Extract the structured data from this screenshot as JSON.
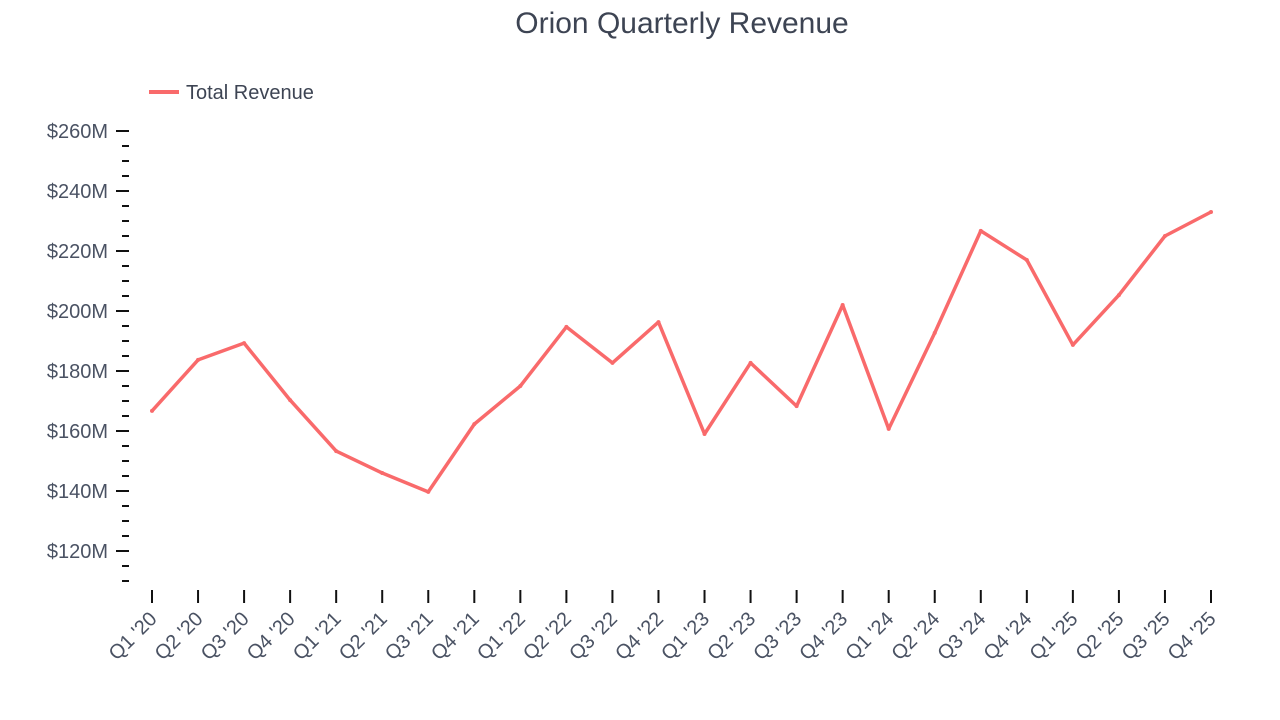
{
  "chart_data": {
    "type": "line",
    "title": "Orion Quarterly Revenue",
    "xlabel": "",
    "ylabel": "",
    "categories": [
      "Q1 '20",
      "Q2 '20",
      "Q3 '20",
      "Q4 '20",
      "Q1 '21",
      "Q2 '21",
      "Q3 '21",
      "Q4 '21",
      "Q1 '22",
      "Q2 '22",
      "Q3 '22",
      "Q4 '22",
      "Q1 '23",
      "Q2 '23",
      "Q3 '23",
      "Q4 '23",
      "Q1 '24",
      "Q2 '24",
      "Q3 '24",
      "Q4 '24",
      "Q1 '25",
      "Q2 '25",
      "Q3 '25",
      "Q4 '25"
    ],
    "series": [
      {
        "name": "Total Revenue",
        "color": "#f96a6b",
        "values": [
          166.7,
          183.7,
          189.3,
          170.3,
          153.3,
          146.0,
          139.7,
          162.3,
          175.0,
          194.7,
          182.7,
          196.3,
          159.0,
          182.7,
          168.3,
          202.0,
          160.7,
          192.7,
          226.7,
          217.0,
          188.7,
          205.3,
          225.0,
          233.0
        ]
      }
    ],
    "yticks": [
      120,
      140,
      160,
      180,
      200,
      220,
      240,
      260
    ],
    "ytick_labels": [
      "$120M",
      "$140M",
      "$160M",
      "$180M",
      "$200M",
      "$220M",
      "$240M",
      "$260M"
    ],
    "yminor_step": 5,
    "ylim": [
      110,
      260
    ],
    "grid": false,
    "legend_position": "top-left"
  }
}
